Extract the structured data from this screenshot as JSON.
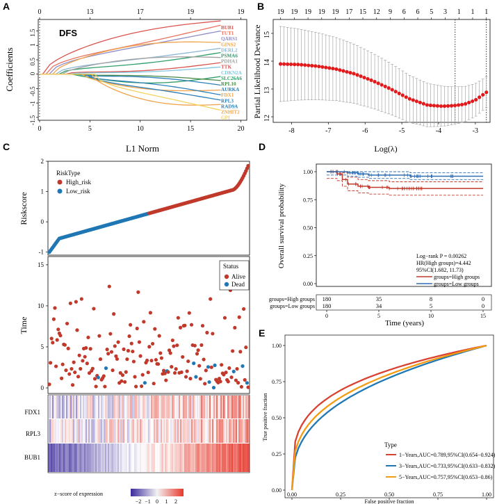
{
  "colors": {
    "high": "#c0392b",
    "low": "#1f77b4",
    "lowDark": "#2f6db2",
    "red_dot": "#e31a1c",
    "heat_low": "#3b2a9c",
    "heat_mid": "#f2f2f2",
    "heat_high": "#e8392c",
    "roc1": "#d94130",
    "roc3": "#1f78b4",
    "roc5": "#f39c12"
  },
  "panels": {
    "A": {
      "label": "A",
      "inner_label": "DFS",
      "ylabel": "Coefficients",
      "xlabel": "L1 Norm",
      "top_ticks": [
        "0",
        "13",
        "17",
        "19",
        "19"
      ],
      "x_ticks": [
        "0",
        "5",
        "10",
        "15",
        "20"
      ],
      "y_ticks": [
        "-1.5",
        "-1",
        "-0.5",
        "0",
        "0.5",
        "1",
        "1.5"
      ],
      "genes": [
        {
          "name": "BUB1",
          "color": "#d9534f",
          "end": 1.85
        },
        {
          "name": "TUT1",
          "color": "#e8745f",
          "end": 1.7
        },
        {
          "name": "QARS1",
          "color": "#8e8cc7",
          "end": 1.5
        },
        {
          "name": "GINS2",
          "color": "#f0a34a",
          "end": 1.1
        },
        {
          "name": "DERL2",
          "color": "#8bb6d6",
          "end": 0.9
        },
        {
          "name": "PSMA6",
          "color": "#2e9e6a",
          "end": 0.75
        },
        {
          "name": "PDHA1",
          "color": "#a0a0a0",
          "end": 0.58
        },
        {
          "name": "TTK",
          "color": "#d9534f",
          "end": 0.4
        },
        {
          "name": "CDKN2A",
          "color": "#7fc6e0",
          "end": 0.25
        },
        {
          "name": "SLC26A6",
          "color": "#2e9e6a",
          "end": -0.08
        },
        {
          "name": "RPL10",
          "color": "#4c8c4a",
          "end": -0.22
        },
        {
          "name": "AURKA",
          "color": "#2c7fb8",
          "end": -0.38
        },
        {
          "name": "FDX1",
          "color": "#f0a34a",
          "end": -0.55
        },
        {
          "name": "RPL3",
          "color": "#2c7fb8",
          "end": -0.72
        },
        {
          "name": "RAD9A",
          "color": "#2c7fb8",
          "end": -0.9
        },
        {
          "name": "ZNHIT2",
          "color": "#f0a34a",
          "end": -1.05
        },
        {
          "name": "GPI",
          "color": "#f5d35b",
          "end": -1.25
        }
      ]
    },
    "B": {
      "label": "B",
      "ylabel": "Partial Likelihood Deviance",
      "xlabel": "Log(λ)",
      "top_ticks": [
        "19",
        "19",
        "19",
        "19",
        "19",
        "17",
        "15",
        "12",
        "9",
        "6",
        "6",
        "5",
        "3",
        "1",
        "1",
        "1"
      ],
      "x_ticks": [
        "-8",
        "-7",
        "-6",
        "-5",
        "-4",
        "-3"
      ],
      "y_ticks": [
        "12",
        "13",
        "14",
        "15"
      ]
    },
    "C": {
      "label": "C",
      "risk_ylabel": "Riskscore",
      "legend_title": "RiskType",
      "legend_high": "High_risk",
      "legend_low": "Low_risk",
      "risk_y_ticks": [
        "-1",
        "0",
        "1",
        "2"
      ],
      "time_ylabel": "Time",
      "time_y_ticks": [
        "0",
        "5",
        "10",
        "15"
      ],
      "status_title": "Status",
      "status_alive": "Alive",
      "status_dead": "Dead",
      "genes": [
        "FDX1",
        "RPL3",
        "BUB1"
      ],
      "zscore_label": "z−score of expression",
      "z_ticks": [
        "−2",
        "−1",
        "0",
        "1",
        "2"
      ]
    },
    "D": {
      "label": "D",
      "ylabel": "Overall survival probability",
      "xlabel": "Time (years)",
      "y_ticks": [
        "0.00",
        "0.25",
        "0.50",
        "0.75",
        "1.00"
      ],
      "x_ticks": [
        "0",
        "5",
        "10",
        "15"
      ],
      "stat_logrank": "Log−rank P = 0.00262",
      "stat_hr": "HR(High groups)=4.442",
      "stat_ci": "95%CI(1.682, 11.73)",
      "legend_high": "groups=High groups",
      "legend_low": "groups=Low groups",
      "risk_table": {
        "rows": [
          {
            "label": "groups=High groups",
            "values": [
              "180",
              "35",
              "8",
              "0"
            ]
          },
          {
            "label": "groups=Low groups",
            "values": [
              "180",
              "34",
              "5",
              "0"
            ]
          }
        ]
      }
    },
    "E": {
      "label": "E",
      "ylabel": "True positive fraction",
      "xlabel": "False positive fraction",
      "ticks": [
        "0.00",
        "0.25",
        "0.50",
        "0.75",
        "1.00"
      ],
      "legend_title": "Type",
      "legend": [
        "1−Years,AUC=0.789,95%CI(0.654−0.924)",
        "3−Years,AUC=0.733,95%CI(0.633−0.832)",
        "5−Years,AUC=0.757,95%CI(0.653−0.86)"
      ]
    }
  },
  "chart_data": [
    {
      "panel": "A",
      "type": "line",
      "title": "DFS",
      "xlabel": "L1 Norm",
      "ylabel": "Coefficients",
      "xlim": [
        0,
        20
      ],
      "ylim": [
        -1.6,
        1.9
      ],
      "note": "LASSO coefficient paths for 17 genes; end values listed in panels.A.genes"
    },
    {
      "panel": "B",
      "type": "scatter",
      "xlabel": "Log(λ)",
      "ylabel": "Partial Likelihood Deviance",
      "xlim": [
        -8.5,
        -2.6
      ],
      "ylim": [
        11.8,
        15.5
      ],
      "x": [
        -8.3,
        -7.8,
        -7.3,
        -6.8,
        -6.3,
        -5.8,
        -5.3,
        -4.8,
        -4.3,
        -3.9,
        -3.6,
        -3.3,
        -3.0,
        -2.7
      ],
      "y": [
        13.9,
        13.88,
        13.82,
        13.72,
        13.55,
        13.3,
        13.0,
        12.65,
        12.42,
        12.38,
        12.4,
        12.45,
        12.6,
        12.88
      ],
      "vlines": [
        -3.55,
        -2.7
      ]
    },
    {
      "panel": "D",
      "type": "line",
      "xlabel": "Time (years)",
      "ylabel": "Overall survival probability",
      "series": [
        {
          "name": "groups=High groups",
          "x": [
            0,
            1,
            1.5,
            2,
            3,
            4,
            6,
            15
          ],
          "y": [
            1.0,
            0.98,
            0.93,
            0.89,
            0.87,
            0.86,
            0.85,
            0.85
          ]
        },
        {
          "name": "groups=Low groups",
          "x": [
            0,
            2,
            3,
            4,
            8,
            15
          ],
          "y": [
            1.0,
            0.99,
            0.98,
            0.97,
            0.96,
            0.96
          ]
        }
      ]
    },
    {
      "panel": "E",
      "type": "line",
      "xlabel": "False positive fraction",
      "ylabel": "True positive fraction",
      "series": [
        {
          "name": "1−Years",
          "auc": 0.789
        },
        {
          "name": "3−Years",
          "auc": 0.733
        },
        {
          "name": "5−Years",
          "auc": 0.757
        }
      ]
    }
  ]
}
